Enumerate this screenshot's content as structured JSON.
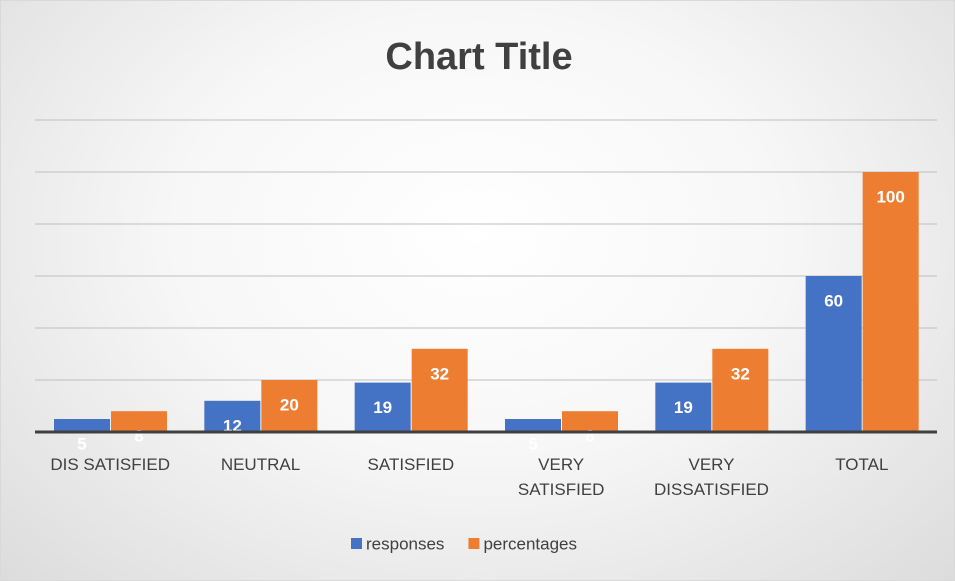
{
  "chart_data": {
    "type": "bar",
    "title": "Chart Title",
    "categories": [
      "DIS SATISFIED",
      "NEUTRAL",
      "SATISFIED",
      "VERY\nSATISFIED",
      "VERY\nDISSATISFIED",
      "TOTAL"
    ],
    "series": [
      {
        "name": "responses",
        "color": "#4472c4",
        "values": [
          5,
          12,
          19,
          5,
          19,
          60
        ]
      },
      {
        "name": "percentages",
        "color": "#ed7d31",
        "values": [
          8,
          20,
          32,
          8,
          32,
          100
        ]
      }
    ],
    "ylim": [
      0,
      120
    ],
    "yticks": [
      0,
      20,
      40,
      60,
      80,
      100,
      120
    ],
    "grid": true
  }
}
